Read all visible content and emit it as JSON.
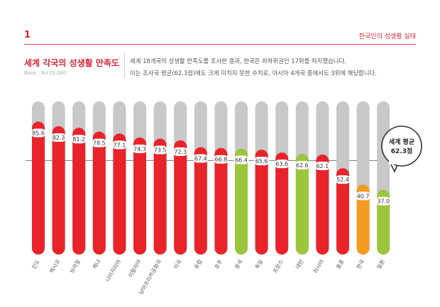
{
  "header": {
    "page_number": "1",
    "section_label": "한국인의 성생활 실태"
  },
  "chart_title": "세계 각국의 성생활 만족도",
  "base_note": "Base : N=13,000",
  "description": {
    "line1": "세계 18개국의 성생활 만족도를 조사한 결과, 한국은 최하위권인 17위를 차지했습니다.",
    "line2": "이는 조사국 평균(62.3점)에도 크게 미치지 못한 수치로, 아시아 4개국 중에서도 3위에 해당합니다."
  },
  "callout": {
    "line1": "세계 평균",
    "line2": "62.3점"
  },
  "colors": {
    "red": "#e8232a",
    "green": "#9bc53d",
    "orange": "#f39a1f",
    "track": "#c8c8c8"
  },
  "chart_data": {
    "type": "bar",
    "title": "세계 각국의 성생활 만족도",
    "ylim": [
      0,
      100
    ],
    "average": 62.3,
    "categories": [
      "인도",
      "멕시코",
      "브라질",
      "케냐",
      "나이지리아",
      "이탈리아",
      "남아프리카공화국",
      "미국",
      "유럽",
      "호주",
      "중국",
      "독일",
      "프랑스",
      "대만",
      "러시아",
      "홍콩",
      "한국",
      "일본"
    ],
    "values": [
      85.6,
      82.3,
      81.2,
      78.5,
      77.1,
      74.3,
      73.5,
      72.3,
      67.4,
      66.8,
      66.4,
      65.6,
      63.6,
      62.6,
      62.1,
      52.4,
      40.7,
      37.0
    ],
    "labels": [
      "85.6",
      "82.3",
      "81.2",
      "78.5",
      "77.1",
      "74.3",
      "73.5",
      "72.3",
      "67.4",
      "66.8",
      "66.4",
      "65.6",
      "63.6",
      "62.6",
      "62.1",
      "52.4",
      "40.7",
      "37.0"
    ],
    "bar_colors": [
      "red",
      "red",
      "red",
      "red",
      "red",
      "red",
      "red",
      "red",
      "red",
      "red",
      "green",
      "red",
      "red",
      "green",
      "red",
      "red",
      "orange",
      "green"
    ]
  }
}
